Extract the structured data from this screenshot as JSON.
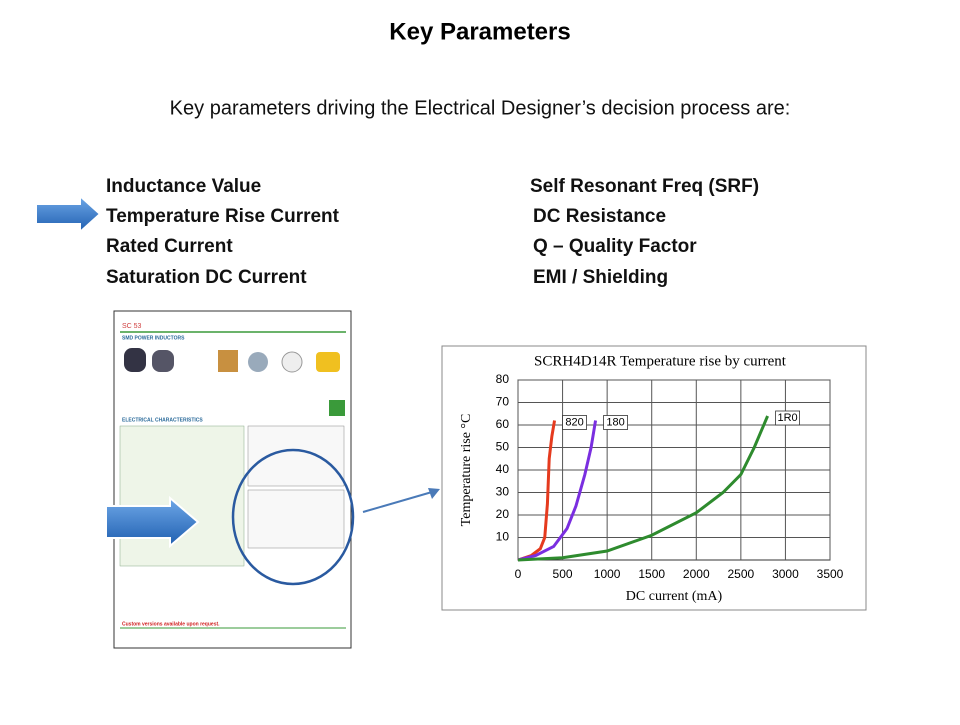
{
  "header": {
    "title": "Key Parameters",
    "subtitle": "Key parameters driving the Electrical Designer’s decision process are:"
  },
  "parameters": {
    "left": [
      "Inductance Value",
      "Temperature Rise Current",
      "Rated Current",
      "Saturation DC Current"
    ],
    "right": [
      "Self Resonant Freq (SRF)",
      "DC Resistance",
      "Q – Quality Factor",
      "EMI / Shielding"
    ],
    "highlighted": 1
  },
  "datasheet": {
    "code": "SC 53",
    "heading": "SMD POWER INDUCTORS",
    "section": "ELECTRICAL CHARACTERISTICS",
    "note": "Custom versions available upon request."
  },
  "chart_data": {
    "type": "line",
    "title": "SCRH4D14R Temperature rise by current",
    "x_label": "DC current (mA)",
    "y_label": "Temperature rise °C",
    "xlim": [
      0,
      3500
    ],
    "ylim": [
      0,
      80
    ],
    "xticks": [
      0,
      500,
      1000,
      1500,
      2000,
      2500,
      3000,
      3500
    ],
    "yticks": [
      10,
      20,
      30,
      40,
      50,
      60,
      70,
      80
    ],
    "grid": true,
    "series": [
      {
        "name": "820",
        "color": "#e53a1e",
        "x": [
          0,
          150,
          250,
          300,
          330,
          350,
          380,
          410
        ],
        "values": [
          0,
          2,
          5,
          10,
          25,
          45,
          55,
          62
        ]
      },
      {
        "name": "180",
        "color": "#7a2ee0",
        "x": [
          0,
          200,
          400,
          550,
          650,
          750,
          820,
          870
        ],
        "values": [
          0,
          2,
          6,
          14,
          24,
          38,
          50,
          62
        ]
      },
      {
        "name": "1R0",
        "color": "#2e8b2e",
        "x": [
          0,
          500,
          1000,
          1500,
          2000,
          2300,
          2500,
          2650,
          2800
        ],
        "values": [
          0,
          1,
          4,
          11,
          21,
          30,
          38,
          50,
          64
        ]
      }
    ]
  }
}
